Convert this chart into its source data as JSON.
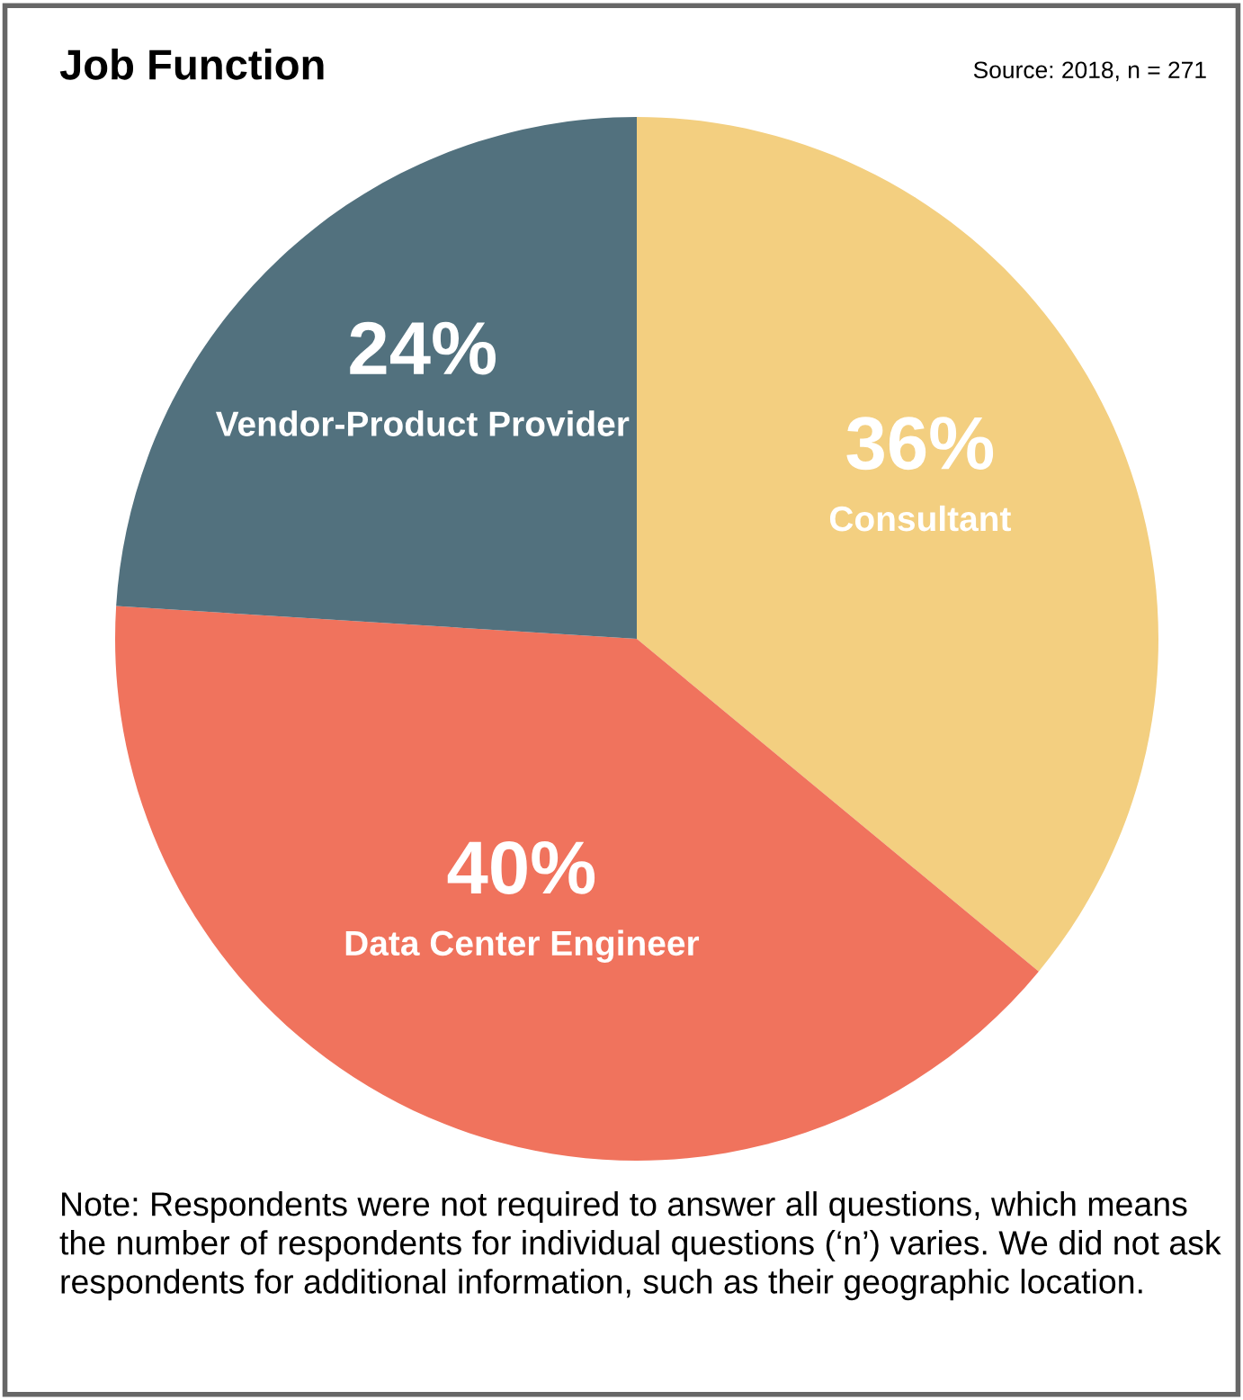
{
  "chart_data": {
    "type": "pie",
    "title": "Job Function",
    "annotations": [
      "Source: 2018, n = 271",
      "Note: Respondents were not required to answer all questions, which means the number of respondents for individual questions (‘n’) varies. We did not ask respondents for additional information, such as their geographic location."
    ],
    "categories": [
      "Consultant",
      "Data Center Engineer",
      "Vendor-Product Provider"
    ],
    "values": [
      36,
      40,
      24
    ],
    "value_labels": [
      "36%",
      "40%",
      "24%"
    ],
    "colors": [
      "#f3cf80",
      "#f0735d",
      "#52717e"
    ],
    "legend": false
  }
}
